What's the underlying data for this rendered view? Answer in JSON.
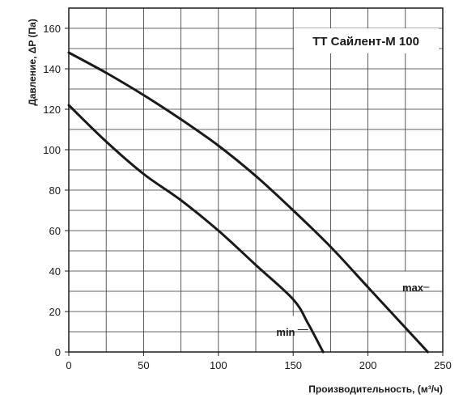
{
  "chart_data": {
    "type": "line",
    "title": "ТТ Сайлент-М 100",
    "xlabel": "Производительность, (м³/ч)",
    "ylabel": "Давление, ΔP (Па)",
    "xlim": [
      0,
      250
    ],
    "ylim": [
      0,
      170
    ],
    "x_ticks": [
      "0",
      "50",
      "100",
      "150",
      "200",
      "250"
    ],
    "y_ticks": [
      "0",
      "20",
      "40",
      "60",
      "80",
      "100",
      "120",
      "140",
      "160"
    ],
    "x_tick_values": [
      0,
      50,
      100,
      150,
      200,
      250
    ],
    "y_tick_values": [
      0,
      20,
      40,
      60,
      80,
      100,
      120,
      140,
      160
    ],
    "grid": true,
    "colors": {
      "line": "#1a1a1a",
      "grid": "#333333",
      "background": "#ffffff"
    },
    "series": [
      {
        "name": "max",
        "points": [
          [
            0,
            148
          ],
          [
            25,
            138
          ],
          [
            50,
            127
          ],
          [
            75,
            115
          ],
          [
            100,
            102
          ],
          [
            125,
            87
          ],
          [
            150,
            70
          ],
          [
            175,
            52
          ],
          [
            200,
            32
          ],
          [
            225,
            12
          ],
          [
            240,
            0
          ]
        ]
      },
      {
        "name": "min",
        "points": [
          [
            0,
            122
          ],
          [
            25,
            104
          ],
          [
            50,
            88
          ],
          [
            75,
            75
          ],
          [
            100,
            60
          ],
          [
            125,
            43
          ],
          [
            150,
            26
          ],
          [
            160,
            14
          ],
          [
            170,
            0
          ]
        ]
      }
    ]
  }
}
